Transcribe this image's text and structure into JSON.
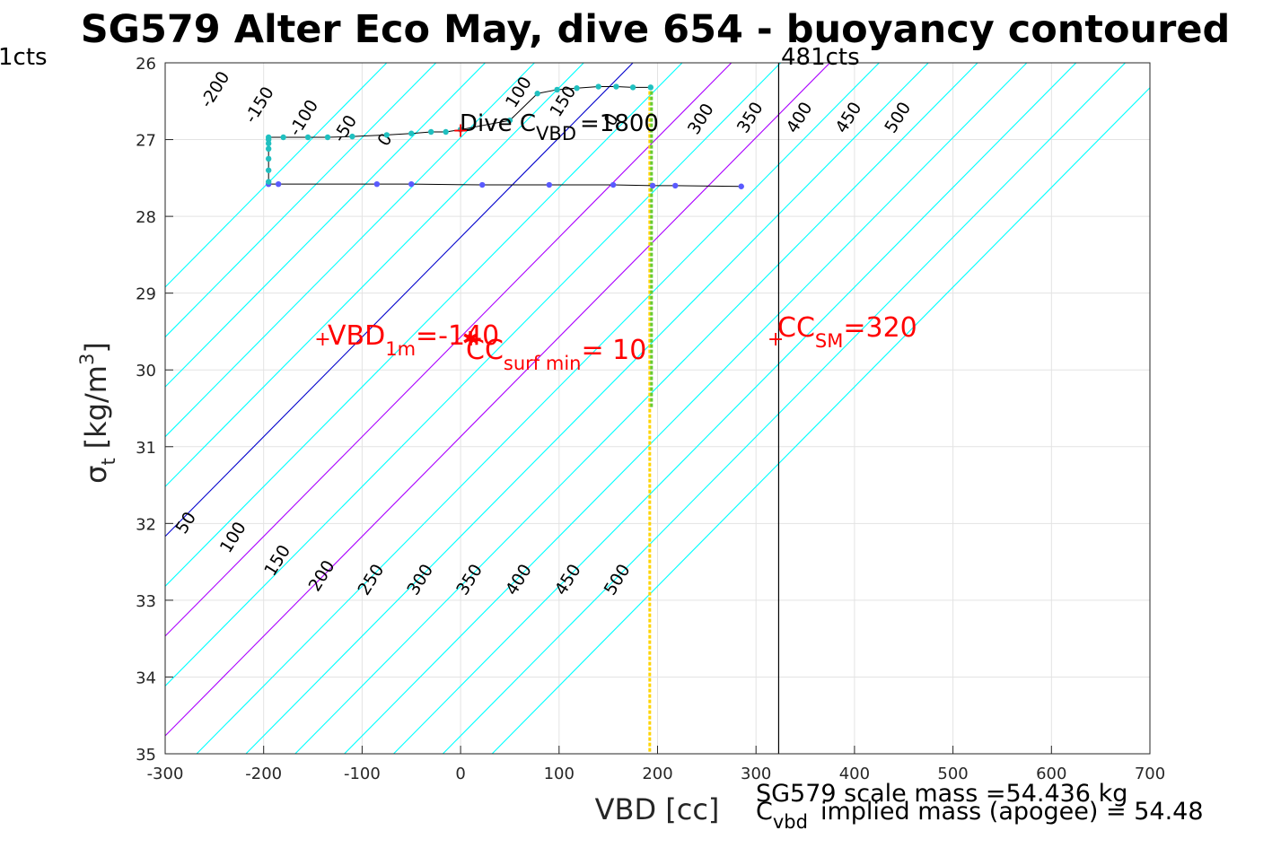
{
  "chart_data": {
    "type": "line",
    "title": "SG579 Alter Eco May, dive 654 - buoyancy contoured",
    "xlabel": "VBD [cc]",
    "ylabel": "σ",
    "ylabel_sub": "t",
    "ylabel_unit": "[kg/m",
    "ylabel_sup": "3",
    "ylabel_close": "]",
    "xlim": [
      -300,
      700
    ],
    "ylim": [
      26,
      35
    ],
    "y_reversed": true,
    "grid": true,
    "x_ticks": [
      -300,
      -200,
      -100,
      0,
      100,
      200,
      300,
      400,
      500,
      600,
      700
    ],
    "y_ticks": [
      26,
      27,
      28,
      29,
      30,
      31,
      32,
      33,
      34,
      35
    ],
    "contours": {
      "color": "#00ffff",
      "highlight_colors": {
        "0": "#0000cc",
        "100": "#aa00ff",
        "200": "#aa00ff"
      },
      "values": [
        -250,
        -200,
        -150,
        -100,
        -50,
        0,
        50,
        100,
        150,
        200,
        250,
        300,
        350,
        400,
        450,
        500,
        550
      ],
      "labels_top": [
        {
          "text": "-200",
          "x": -255,
          "y": 26.6
        },
        {
          "text": "-150",
          "x": -210,
          "y": 26.8
        },
        {
          "text": "-100",
          "x": -165,
          "y": 26.97
        },
        {
          "text": "-50",
          "x": -120,
          "y": 27.05
        },
        {
          "text": "0",
          "x": -75,
          "y": 27.1
        },
        {
          "text": "100",
          "x": 55,
          "y": 26.6
        },
        {
          "text": "150",
          "x": 100,
          "y": 26.72
        },
        {
          "text": "0",
          "x": 155,
          "y": 26.84
        },
        {
          "text": "300",
          "x": 240,
          "y": 26.95
        },
        {
          "text": "350",
          "x": 290,
          "y": 26.93
        },
        {
          "text": "400",
          "x": 340,
          "y": 26.93
        },
        {
          "text": "450",
          "x": 390,
          "y": 26.93
        },
        {
          "text": "500",
          "x": 440,
          "y": 26.93
        }
      ],
      "labels_bottom": [
        {
          "text": "50",
          "x": -280,
          "y": 32.15
        },
        {
          "text": "100",
          "x": -235,
          "y": 32.4
        },
        {
          "text": "150",
          "x": -190,
          "y": 32.7
        },
        {
          "text": "200",
          "x": -145,
          "y": 32.9
        },
        {
          "text": "250",
          "x": -95,
          "y": 32.95
        },
        {
          "text": "300",
          "x": -45,
          "y": 32.95
        },
        {
          "text": "350",
          "x": 5,
          "y": 32.95
        },
        {
          "text": "400",
          "x": 55,
          "y": 32.95
        },
        {
          "text": "450",
          "x": 105,
          "y": 32.95
        },
        {
          "text": "500",
          "x": 155,
          "y": 32.95
        }
      ]
    },
    "series": [
      {
        "color": "#5a5aff",
        "x": [
          -195,
          -185,
          -85,
          -50,
          22,
          90,
          155,
          195,
          218,
          285
        ],
        "y": [
          27.58,
          27.58,
          27.58,
          27.58,
          27.59,
          27.59,
          27.59,
          27.6,
          27.6,
          27.61
        ]
      },
      {
        "color": "#20c0c0",
        "x": [
          -195,
          -195,
          -195,
          -195,
          -195,
          -195,
          -195,
          -180,
          -155,
          -135,
          -110,
          -75,
          -50,
          -30,
          -15,
          0,
          50,
          78,
          98,
          118,
          140,
          158,
          175,
          193
        ],
        "y": [
          27.55,
          27.4,
          27.25,
          27.12,
          27.05,
          27.0,
          26.97,
          26.97,
          26.97,
          26.97,
          26.96,
          26.94,
          26.92,
          26.9,
          26.9,
          26.87,
          26.75,
          26.4,
          26.35,
          26.33,
          26.31,
          26.31,
          26.32,
          26.32
        ]
      }
    ],
    "vertical_lines": [
      {
        "x": 193,
        "style": "dotted-green-yellow"
      },
      {
        "x": 323,
        "style": "solid-black",
        "label": "481cts"
      }
    ],
    "left_label": "1cts",
    "annotations": {
      "dive_c": {
        "text": "Dive C",
        "sub": "VBD",
        "value": "=1800",
        "x": 0,
        "y": 26.88
      },
      "vbd_1m": {
        "text": "VBD",
        "sub": "1m",
        "value": "=-140",
        "x": -140,
        "y": 29.6
      },
      "cc_surf_min": {
        "text": "CC",
        "sub": "surf min",
        "value": "= 10",
        "x": 10,
        "y": 29.6
      },
      "cc_sm": {
        "text": "CC",
        "sub": "SM",
        "value": "=320",
        "x": 320,
        "y": 29.6
      }
    },
    "footer": {
      "scale_mass": "SG579 scale mass =54.436 kg",
      "c_vbd": "C",
      "c_vbd_sub": "vbd",
      "implied": "implied mass (apogee) = 54.48"
    }
  }
}
